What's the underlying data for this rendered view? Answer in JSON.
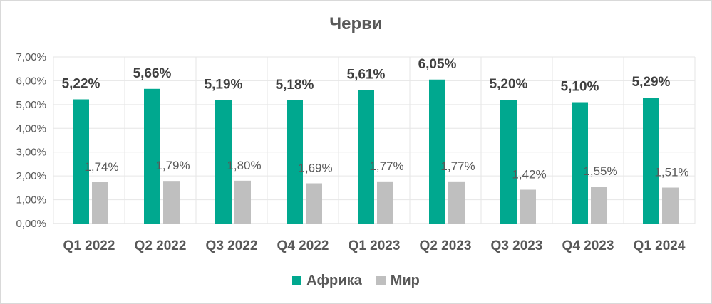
{
  "chart_data": {
    "type": "bar",
    "title": "Черви",
    "categories": [
      "Q1 2022",
      "Q2 2022",
      "Q3 2022",
      "Q4 2022",
      "Q1 2023",
      "Q2 2023",
      "Q3 2023",
      "Q4 2023",
      "Q1 2024"
    ],
    "series": [
      {
        "name": "Африка",
        "color": "#00a88f",
        "values": [
          5.22,
          5.66,
          5.19,
          5.18,
          5.61,
          6.05,
          5.2,
          5.1,
          5.29
        ],
        "labels": [
          "5,22%",
          "5,66%",
          "5,19%",
          "5,18%",
          "5,61%",
          "6,05%",
          "5,20%",
          "5,10%",
          "5,29%"
        ]
      },
      {
        "name": "Мир",
        "color": "#bfbfbf",
        "values": [
          1.74,
          1.79,
          1.8,
          1.69,
          1.77,
          1.77,
          1.42,
          1.55,
          1.51
        ],
        "labels": [
          "1,74%",
          "1,79%",
          "1,80%",
          "1,69%",
          "1,77%",
          "1,77%",
          "1,42%",
          "1,55%",
          "1,51%"
        ]
      }
    ],
    "y_ticks": [
      "0,00%",
      "1,00%",
      "2,00%",
      "3,00%",
      "4,00%",
      "5,00%",
      "6,00%",
      "7,00%"
    ],
    "ylim": [
      0,
      7
    ],
    "grid": true,
    "legend_position": "bottom"
  }
}
